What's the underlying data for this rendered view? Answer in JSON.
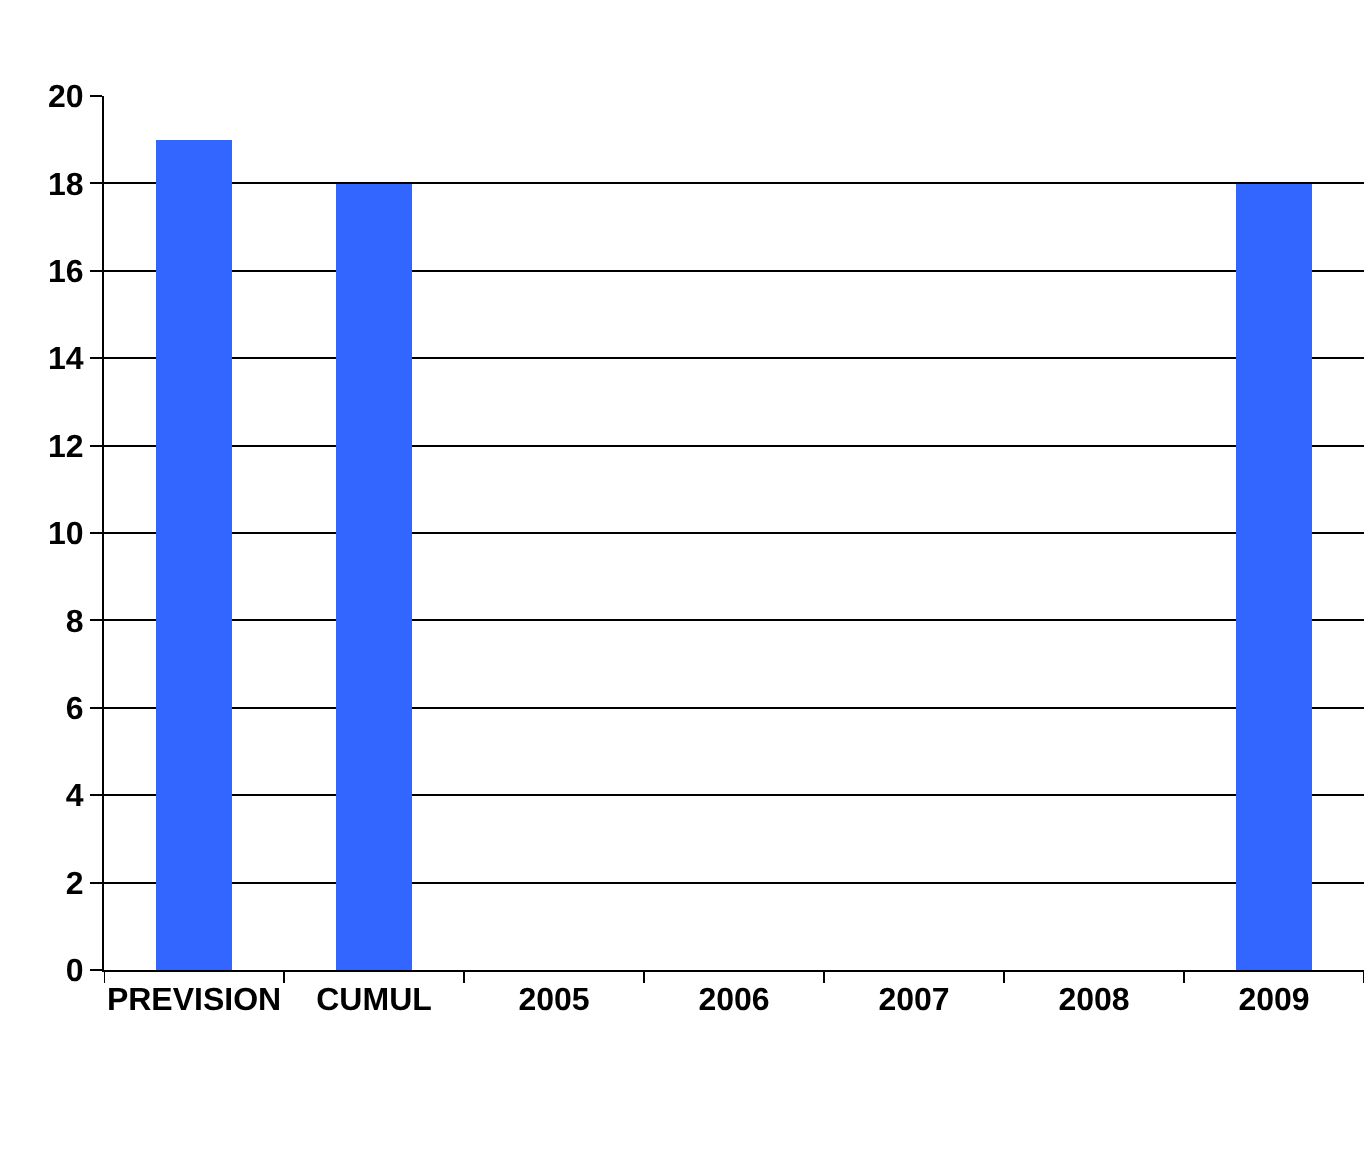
{
  "chart_data": {
    "type": "bar",
    "categories": [
      "PREVISION",
      "CUMUL",
      "2005",
      "2006",
      "2007",
      "2008",
      "2009"
    ],
    "values": [
      19,
      18,
      null,
      null,
      null,
      null,
      18
    ],
    "color": "#3366ff",
    "ylim": [
      0,
      20
    ],
    "yticks": [
      0,
      2,
      4,
      6,
      8,
      10,
      12,
      14,
      16,
      18,
      20
    ],
    "grid": "y"
  }
}
